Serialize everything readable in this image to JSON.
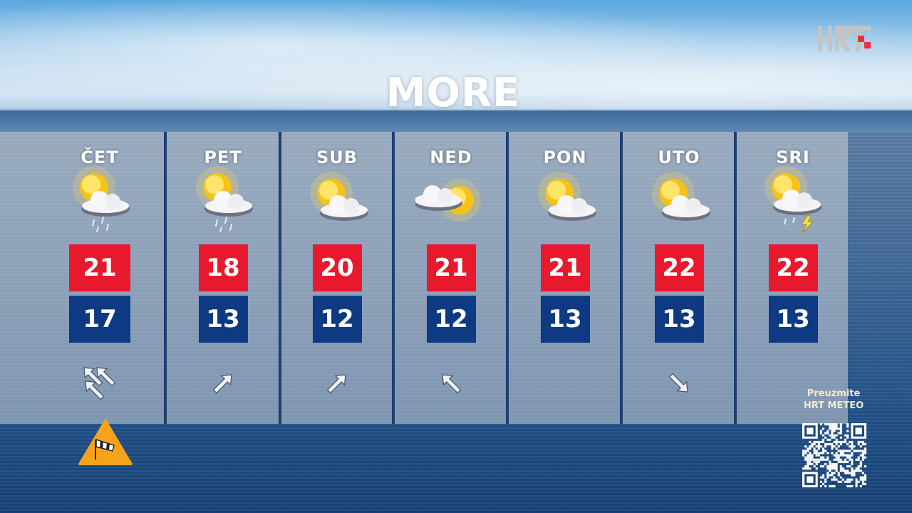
{
  "title": "MORE",
  "logo": {
    "text": "HRT",
    "accent": "#e8333a"
  },
  "colors": {
    "max": "#e8192c",
    "min": "#0d3a82",
    "warning": "#f7a21b"
  },
  "days": [
    {
      "label": "ČET",
      "icon": "sun-cloud-rain",
      "max": "21",
      "min": "17",
      "wind": [
        "NW",
        "NW",
        "NW"
      ]
    },
    {
      "label": "PET",
      "icon": "sun-cloud-rain",
      "max": "18",
      "min": "13",
      "wind": [
        "NE"
      ]
    },
    {
      "label": "SUB",
      "icon": "sun-cloud",
      "max": "20",
      "min": "12",
      "wind": [
        "NE"
      ]
    },
    {
      "label": "NED",
      "icon": "cloud-sun",
      "max": "21",
      "min": "12",
      "wind": [
        "NW"
      ]
    },
    {
      "label": "PON",
      "icon": "sun-cloud",
      "max": "21",
      "min": "13",
      "wind": []
    },
    {
      "label": "UTO",
      "icon": "sun-cloud",
      "max": "22",
      "min": "13",
      "wind": [
        "SE"
      ]
    },
    {
      "label": "SRI",
      "icon": "sun-cloud-thunder",
      "max": "22",
      "min": "13",
      "wind": []
    }
  ],
  "warning": {
    "icon": "windsock-warning-icon"
  },
  "promo": {
    "line1": "Preuzmite",
    "line2": "HRT METEO"
  }
}
